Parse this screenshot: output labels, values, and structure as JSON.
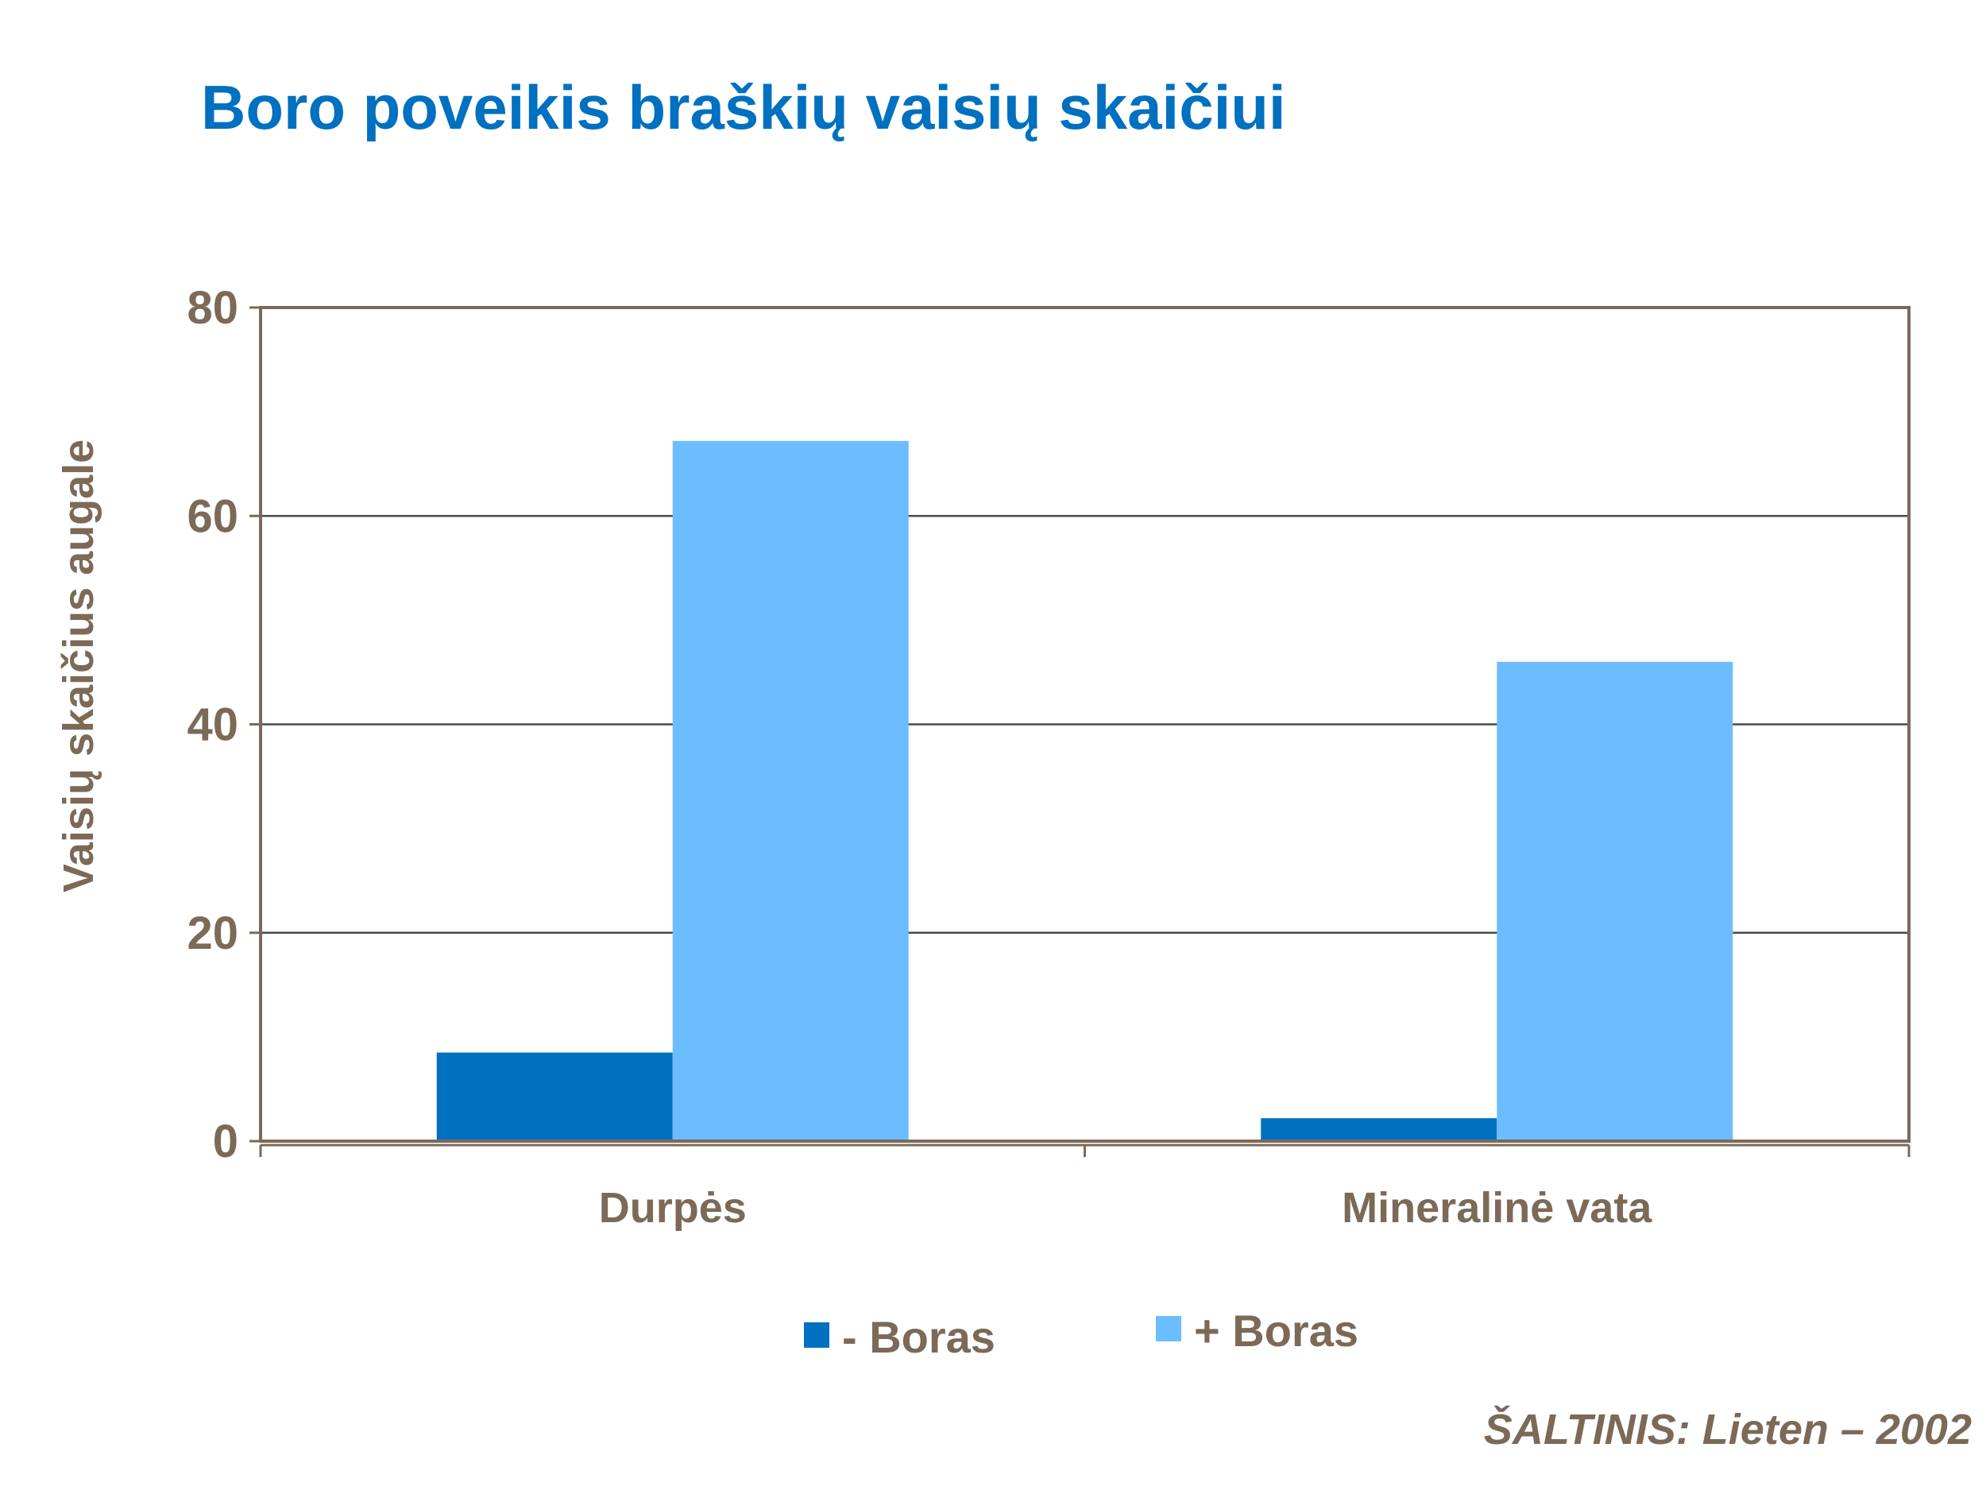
{
  "page": {
    "title": "Boro poveikis braškių vaisių skaičiui",
    "source": "ŠALTINIS:  Lieten – 2002"
  },
  "colors": {
    "title": "#0070C0",
    "text": "#7B6A58",
    "frame": "#7B6A58",
    "grid": "#4A4A4A",
    "series_minus": "#0070C0",
    "series_plus": "#6BBDFF"
  },
  "chart_data": {
    "type": "bar",
    "title": "",
    "xlabel": "",
    "ylabel": "Vaisių skaičius augale",
    "categories": [
      "Durpės",
      "Mineralinė vata"
    ],
    "series": [
      {
        "name": "- Boras",
        "values": [
          8.5,
          2.2
        ]
      },
      {
        "name": "+ Boras",
        "values": [
          67.2,
          46
        ]
      }
    ],
    "ylim": [
      0,
      80
    ],
    "yticks": [
      0,
      20,
      40,
      60,
      80
    ],
    "grid": true,
    "legend": "bottom"
  }
}
